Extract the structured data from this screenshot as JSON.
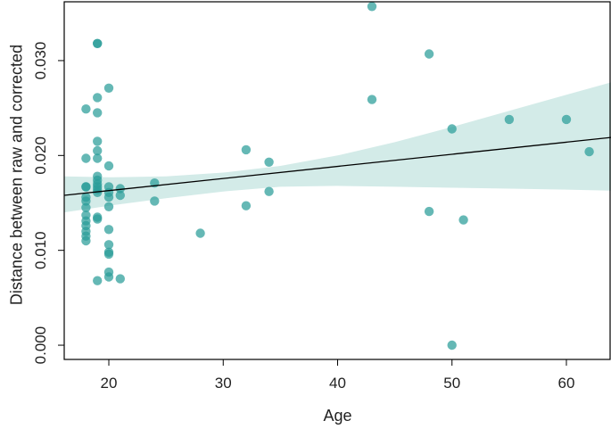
{
  "chart_data": {
    "type": "scatter",
    "xlabel": "Age",
    "ylabel": "Distance between raw and corrected",
    "xlim": [
      16.1,
      63.9
    ],
    "ylim": [
      -0.0015,
      0.0362
    ],
    "x_ticks": [
      20,
      30,
      40,
      50,
      60
    ],
    "y_ticks": [
      0.0,
      0.01,
      0.02,
      0.03
    ],
    "x_tick_labels": [
      "20",
      "30",
      "40",
      "50",
      "60"
    ],
    "y_tick_labels": [
      "0.000",
      "0.010",
      "0.020",
      "0.030"
    ],
    "grid": false,
    "legend": "none",
    "point_color": "#2a9d98",
    "band_color": "#d3ebe8",
    "line_color": "#000000",
    "points": [
      {
        "x": 18,
        "y": 0.0249
      },
      {
        "x": 18,
        "y": 0.0197
      },
      {
        "x": 18,
        "y": 0.0167
      },
      {
        "x": 18,
        "y": 0.0167
      },
      {
        "x": 18,
        "y": 0.0156
      },
      {
        "x": 18,
        "y": 0.0152
      },
      {
        "x": 18,
        "y": 0.0145
      },
      {
        "x": 18,
        "y": 0.0137
      },
      {
        "x": 18,
        "y": 0.0131
      },
      {
        "x": 18,
        "y": 0.0126
      },
      {
        "x": 18,
        "y": 0.012
      },
      {
        "x": 18,
        "y": 0.0115
      },
      {
        "x": 18,
        "y": 0.011
      },
      {
        "x": 19,
        "y": 0.0318
      },
      {
        "x": 19,
        "y": 0.0318
      },
      {
        "x": 19,
        "y": 0.0261
      },
      {
        "x": 19,
        "y": 0.0245
      },
      {
        "x": 19,
        "y": 0.0215
      },
      {
        "x": 19,
        "y": 0.0205
      },
      {
        "x": 19,
        "y": 0.0197
      },
      {
        "x": 19,
        "y": 0.0178
      },
      {
        "x": 19,
        "y": 0.0174
      },
      {
        "x": 19,
        "y": 0.017
      },
      {
        "x": 19,
        "y": 0.0167
      },
      {
        "x": 19,
        "y": 0.0164
      },
      {
        "x": 19,
        "y": 0.0161
      },
      {
        "x": 19,
        "y": 0.0135
      },
      {
        "x": 19,
        "y": 0.0133
      },
      {
        "x": 19,
        "y": 0.0068
      },
      {
        "x": 20,
        "y": 0.0271
      },
      {
        "x": 20,
        "y": 0.0189
      },
      {
        "x": 20,
        "y": 0.0167
      },
      {
        "x": 20,
        "y": 0.0161
      },
      {
        "x": 20,
        "y": 0.0156
      },
      {
        "x": 20,
        "y": 0.0146
      },
      {
        "x": 20,
        "y": 0.0122
      },
      {
        "x": 20,
        "y": 0.0106
      },
      {
        "x": 20,
        "y": 0.0098
      },
      {
        "x": 20,
        "y": 0.0096
      },
      {
        "x": 20,
        "y": 0.0077
      },
      {
        "x": 20,
        "y": 0.0072
      },
      {
        "x": 21,
        "y": 0.0165
      },
      {
        "x": 21,
        "y": 0.0158
      },
      {
        "x": 21,
        "y": 0.007
      },
      {
        "x": 24,
        "y": 0.0171
      },
      {
        "x": 24,
        "y": 0.0152
      },
      {
        "x": 28,
        "y": 0.0118
      },
      {
        "x": 32,
        "y": 0.0206
      },
      {
        "x": 32,
        "y": 0.0147
      },
      {
        "x": 34,
        "y": 0.0193
      },
      {
        "x": 34,
        "y": 0.0162
      },
      {
        "x": 43,
        "y": 0.0357
      },
      {
        "x": 43,
        "y": 0.0259
      },
      {
        "x": 48,
        "y": 0.0307
      },
      {
        "x": 48,
        "y": 0.0141
      },
      {
        "x": 50,
        "y": 0.0228
      },
      {
        "x": 50,
        "y": 0.0
      },
      {
        "x": 51,
        "y": 0.0132
      },
      {
        "x": 55,
        "y": 0.0238
      },
      {
        "x": 60,
        "y": 0.0238
      },
      {
        "x": 62,
        "y": 0.0204
      }
    ],
    "fit_line": {
      "x": [
        16.1,
        63.9
      ],
      "y": [
        0.0158,
        0.0219
      ]
    },
    "confidence_band": {
      "x": [
        16.1,
        20,
        25,
        30,
        35,
        40,
        45,
        50,
        55,
        60,
        63.9
      ],
      "upper": [
        0.0178,
        0.0177,
        0.0178,
        0.0182,
        0.0189,
        0.02,
        0.0214,
        0.023,
        0.0247,
        0.0264,
        0.0277
      ],
      "lower": [
        0.014,
        0.0147,
        0.0155,
        0.0162,
        0.0167,
        0.0168,
        0.0167,
        0.0166,
        0.0165,
        0.0164,
        0.0163
      ]
    }
  }
}
